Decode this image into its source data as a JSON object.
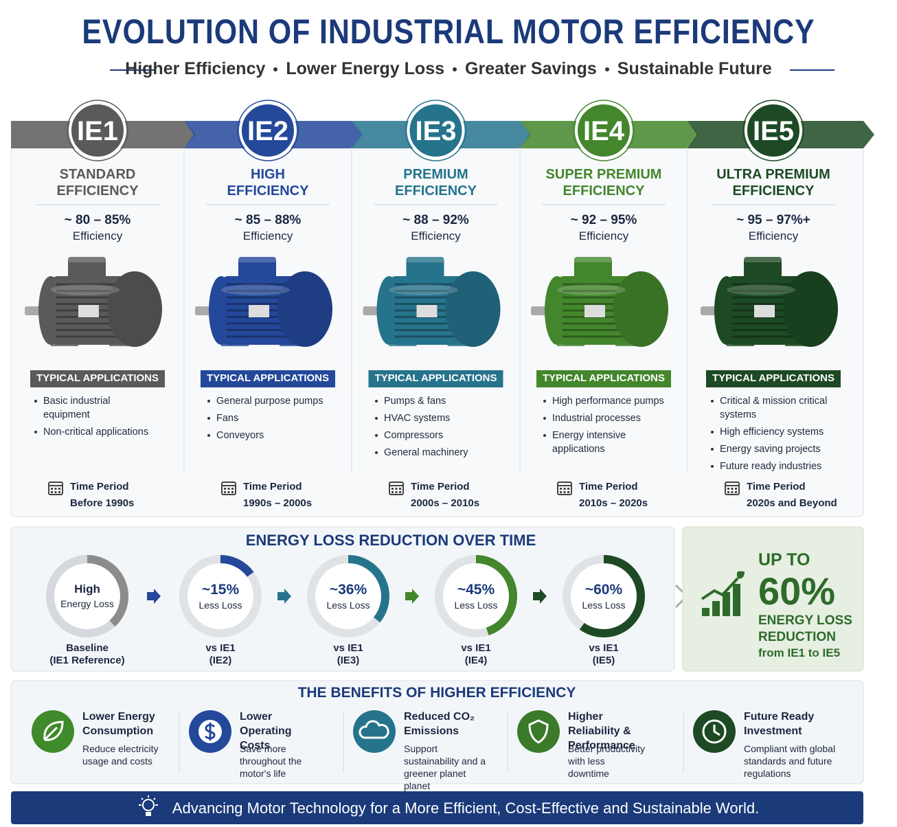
{
  "header": {
    "title": "EVOLUTION OF INDUSTRIAL MOTOR EFFICIENCY",
    "subtitle": [
      "Higher Efficiency",
      "Lower Energy Loss",
      "Greater Savings",
      "Sustainable Future"
    ]
  },
  "classes": [
    {
      "code": "IE1",
      "color": "#5a5a5a",
      "name": [
        "STANDARD",
        "EFFICIENCY"
      ],
      "efficiency": "~ 80 – 85%",
      "efficiency_label": "Efficiency",
      "applications_title": "TYPICAL APPLICATIONS",
      "applications": [
        "Basic industrial equipment",
        "Non-critical applications"
      ],
      "period_label": "Time Period",
      "period": "Before 1990s"
    },
    {
      "code": "IE2",
      "color": "#24489a",
      "name": [
        "HIGH",
        "EFFICIENCY"
      ],
      "efficiency": "~ 85 – 88%",
      "efficiency_label": "Efficiency",
      "applications_title": "TYPICAL APPLICATIONS",
      "applications": [
        "General purpose pumps",
        "Fans",
        "Conveyors"
      ],
      "period_label": "Time Period",
      "period": "1990s – 2000s"
    },
    {
      "code": "IE3",
      "color": "#26738c",
      "name": [
        "PREMIUM",
        "EFFICIENCY"
      ],
      "efficiency": "~ 88 – 92%",
      "efficiency_label": "Efficiency",
      "applications_title": "TYPICAL APPLICATIONS",
      "applications": [
        "Pumps & fans",
        "HVAC systems",
        "Compressors",
        "General machinery"
      ],
      "period_label": "Time Period",
      "period": "2000s – 2010s"
    },
    {
      "code": "IE4",
      "color": "#43862c",
      "name": [
        "SUPER PREMIUM",
        "EFFICIENCY"
      ],
      "efficiency": "~ 92 – 95%",
      "efficiency_label": "Efficiency",
      "applications_title": "TYPICAL APPLICATIONS",
      "applications": [
        "High performance pumps",
        "Industrial processes",
        "Energy intensive applications"
      ],
      "period_label": "Time Period",
      "period": "2010s – 2020s"
    },
    {
      "code": "IE5",
      "color": "#1d4a24",
      "name": [
        "ULTRA PREMIUM",
        "EFFICIENCY"
      ],
      "efficiency": "~ 95 – 97%+",
      "efficiency_label": "Efficiency",
      "applications_title": "TYPICAL APPLICATIONS",
      "applications": [
        "Critical & mission critical systems",
        "High efficiency systems",
        "Energy saving projects",
        "Future ready industries"
      ],
      "period_label": "Time Period",
      "period": "2020s and Beyond"
    }
  ],
  "energy_loss": {
    "title": "ENERGY LOSS REDUCTION OVER TIME",
    "baseline": {
      "lines": [
        "High",
        "Energy Loss"
      ],
      "caption": [
        "Baseline",
        "(IE1 Reference)"
      ]
    },
    "steps": [
      {
        "reduction": {
          "value": 15,
          "label": "~15%"
        },
        "text": "Less Loss",
        "caption": [
          "vs IE1",
          "(IE2)"
        ]
      },
      {
        "reduction": {
          "value": 36,
          "label": "~36%"
        },
        "text": "Less Loss",
        "caption": [
          "vs IE1",
          "(IE3)"
        ]
      },
      {
        "reduction": {
          "value": 45,
          "label": "~45%"
        },
        "text": "Less Loss",
        "caption": [
          "vs IE1",
          "(IE4)"
        ]
      },
      {
        "reduction": {
          "value": 60,
          "label": "~60%"
        },
        "text": "Less Loss",
        "caption": [
          "vs IE1",
          "(IE5)"
        ]
      }
    ],
    "highlight": [
      "UP TO",
      "60%",
      "ENERGY LOSS",
      "REDUCTION",
      "from IE1 to IE5"
    ]
  },
  "benefits": {
    "title": "THE BENEFITS OF HIGHER EFFICIENCY",
    "items": [
      {
        "title": "Lower Energy Consumption",
        "text": "Reduce electricity usage and costs"
      },
      {
        "title": "Lower Operating Costs",
        "text": "Save more throughout the motor's life"
      },
      {
        "title": "Reduced CO₂ Emissions",
        "text": "Support sustainability and a greener planet planet"
      },
      {
        "title": "Higher Reliability & Performance",
        "text": "Better productivity with less downtime"
      },
      {
        "title": "Future Ready Investment",
        "text": "Compliant with global standards and future regulations"
      }
    ]
  },
  "footer": "Advancing Motor Technology for a More Efficient, Cost-Effective and Sustainable World."
}
